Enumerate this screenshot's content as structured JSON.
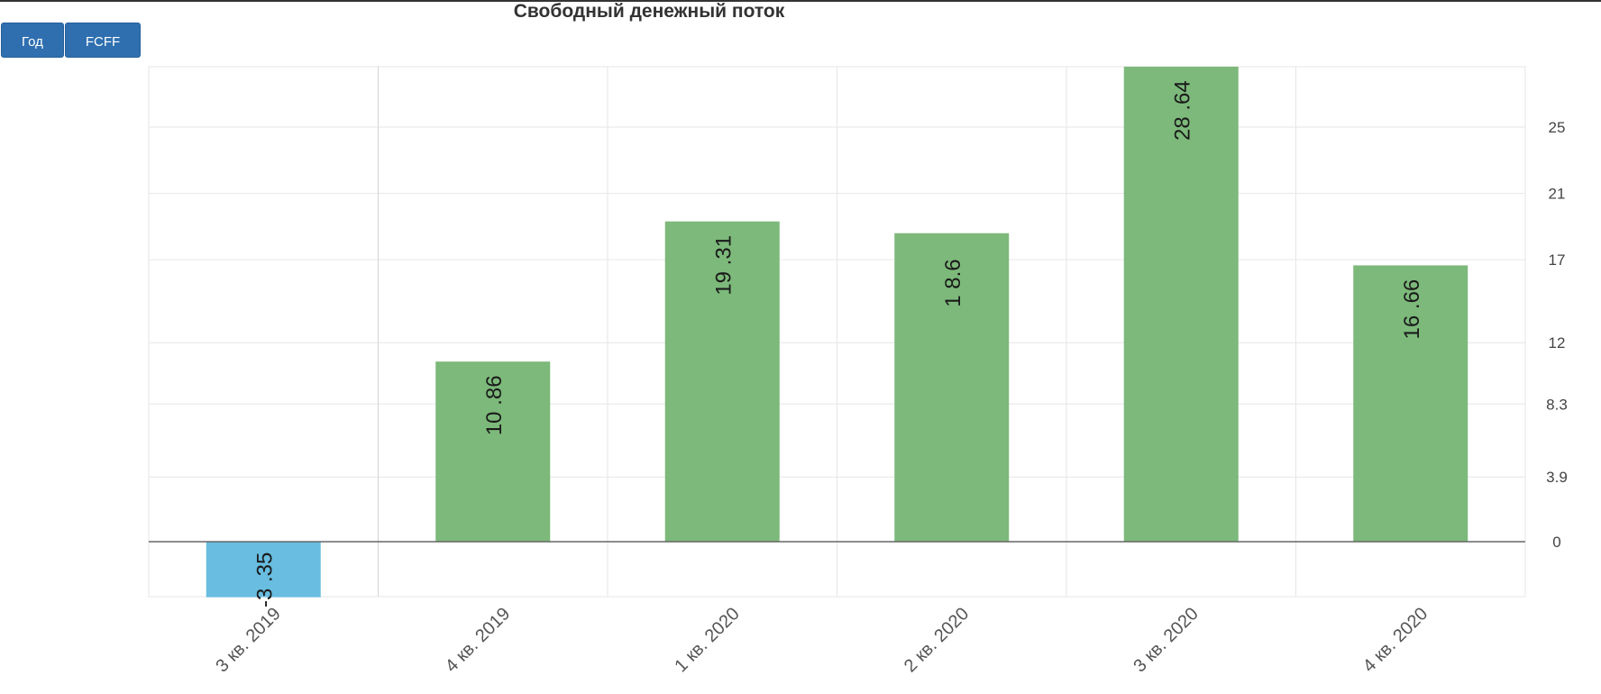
{
  "toolbar": {
    "period_label": "Год",
    "metric_label": "FCFF"
  },
  "colors": {
    "positive": "#7cb97a",
    "negative": "#68bde0",
    "button": "#2f6fb0",
    "grid": "#e6e6e6",
    "axis": "#666666"
  },
  "chart_data": {
    "type": "bar",
    "title": "Свободный денежный поток",
    "categories": [
      "3 кв. 2019",
      "4 кв. 2019",
      "1 кв. 2020",
      "2 кв. 2020",
      "3 кв. 2020",
      "4 кв. 2020"
    ],
    "values": [
      -3.35,
      10.86,
      19.31,
      18.6,
      28.64,
      16.66
    ],
    "data_labels": [
      "-3 .35",
      "10 .86",
      "19 .31",
      "1 8.6",
      "28 .64",
      "16 .66"
    ],
    "yticks": [
      0,
      3.9,
      8.3,
      12,
      17,
      21,
      25
    ],
    "ylim": [
      -3.35,
      28.64
    ],
    "y_axis_side": "right",
    "grid": true,
    "xlabel": "",
    "ylabel": ""
  }
}
